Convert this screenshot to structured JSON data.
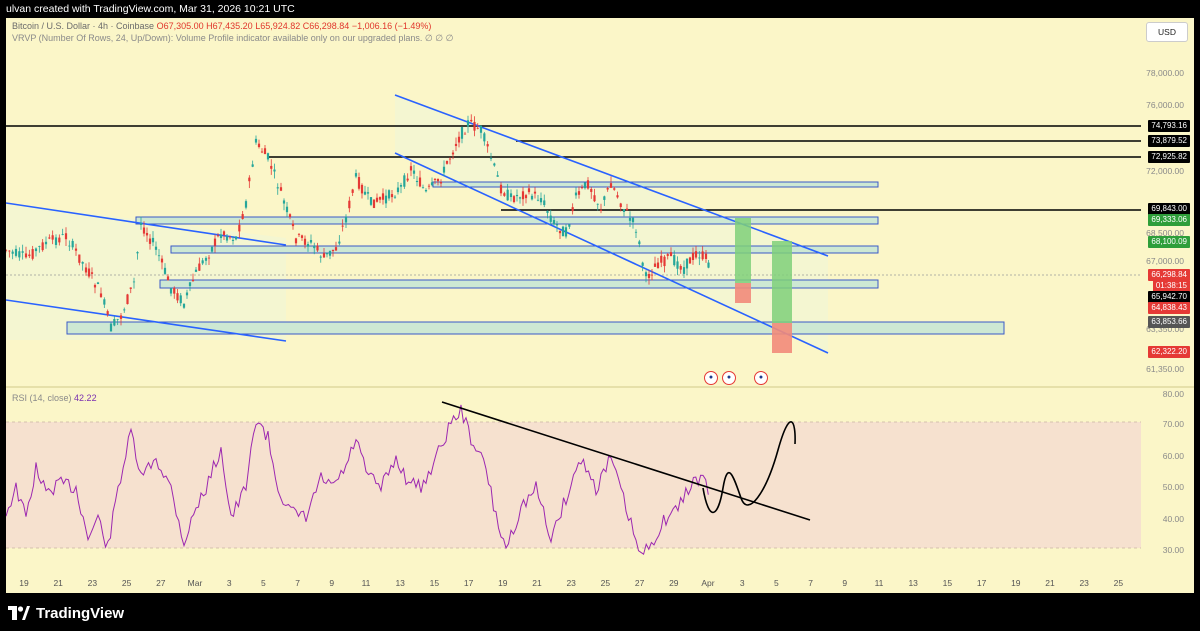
{
  "topbar": {
    "text": "ulvan created with TradingView.com, Mar 31, 2026 10:21 UTC"
  },
  "legend": {
    "symbol": "Bitcoin / U.S. Dollar · 4h · Coinbase",
    "open": "O67,305.00",
    "high": "H67,435.20",
    "low": "L65,924.82",
    "close": "C66,298.84",
    "change": "−1,006.16 (−1.49%)",
    "indicator": "VRVP (Number Of Rows, 24, Up/Down): Volume Profile indicator available only on our upgraded plans.",
    "indicator_icons": "∅ ∅ ∅"
  },
  "currency": "USD",
  "axis_labels": [
    "78,000.00",
    "76,000.00",
    "72,000.00",
    "68,500.00",
    "67,000.00",
    "63,350.00",
    "61,350.00"
  ],
  "price_tags": {
    "p1": "74,793.16",
    "p2": "73,879.52",
    "p3": "72,925.82",
    "p4": "69,843.00",
    "p5": "69,333.06",
    "p6": "68,100.09",
    "p7": "66,298.84",
    "p8": "01:38:15",
    "p9": "65,942.70",
    "p10": "64,838.43",
    "p11": "63,853.66",
    "p12": "62,322.20"
  },
  "rsi": {
    "label": "RSI (14, close)",
    "value": "42.22",
    "axis_labels": [
      "80.00",
      "70.00",
      "60.00",
      "50.00",
      "40.00",
      "30.00"
    ]
  },
  "x_axis": [
    "19",
    "21",
    "23",
    "25",
    "27",
    "Mar",
    "3",
    "5",
    "7",
    "9",
    "11",
    "13",
    "15",
    "17",
    "19",
    "21",
    "23",
    "25",
    "27",
    "29",
    "Apr",
    "3",
    "5",
    "7",
    "9",
    "11",
    "13",
    "15",
    "17",
    "19",
    "21",
    "23",
    "25"
  ],
  "events": [
    "economic-event",
    "economic-event",
    "economic-event"
  ],
  "footer": {
    "brand": "TradingView"
  },
  "colors": {
    "background": "#fbf6c8",
    "up": "#26a69a",
    "down": "#e53935",
    "channel": "#2962ff",
    "rsi": "#9c27b0"
  }
}
